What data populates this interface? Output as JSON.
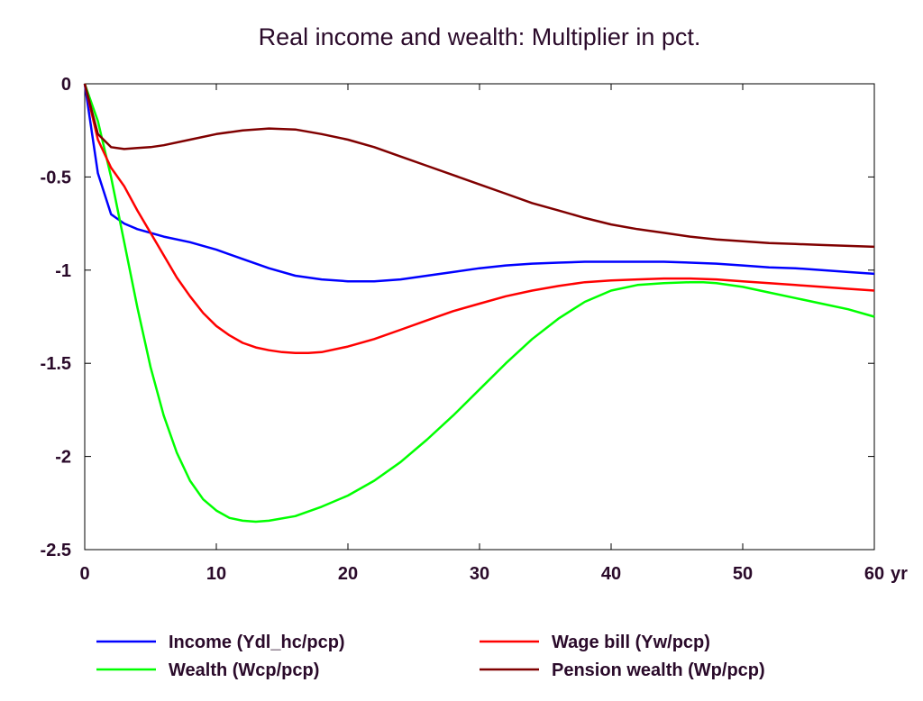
{
  "chart_data": {
    "type": "line",
    "title": "Real income and wealth: Multiplier in pct.",
    "x_unit_label": "yr",
    "xlim": [
      0,
      60
    ],
    "ylim": [
      -2.5,
      0
    ],
    "x_ticks": [
      0,
      10,
      20,
      30,
      40,
      50,
      60
    ],
    "y_ticks": [
      0,
      -0.5,
      -1,
      -1.5,
      -2,
      -2.5
    ],
    "x_tick_labels": [
      "0",
      "10",
      "20",
      "30",
      "40",
      "50",
      "60"
    ],
    "y_tick_labels": [
      "0",
      "-0.5",
      "-1",
      "-1.5",
      "-2",
      "-2.5"
    ],
    "grid": false,
    "legend_position": "bottom",
    "series": [
      {
        "name": "Income (Ydl_hc/pcp)",
        "color": "#0000ff",
        "x": [
          0,
          1,
          2,
          3,
          4,
          5,
          6,
          8,
          10,
          12,
          14,
          16,
          18,
          20,
          22,
          24,
          26,
          28,
          30,
          32,
          34,
          36,
          38,
          40,
          42,
          44,
          46,
          48,
          50,
          52,
          54,
          56,
          58,
          60
        ],
        "y": [
          0,
          -0.48,
          -0.7,
          -0.75,
          -0.78,
          -0.8,
          -0.82,
          -0.85,
          -0.89,
          -0.94,
          -0.99,
          -1.03,
          -1.05,
          -1.06,
          -1.06,
          -1.05,
          -1.03,
          -1.01,
          -0.99,
          -0.975,
          -0.965,
          -0.96,
          -0.955,
          -0.955,
          -0.955,
          -0.955,
          -0.96,
          -0.965,
          -0.975,
          -0.985,
          -0.99,
          -1.0,
          -1.01,
          -1.02
        ]
      },
      {
        "name": "Wealth (Wcp/pcp)",
        "color": "#00ff00",
        "x": [
          0,
          1,
          2,
          3,
          4,
          5,
          6,
          7,
          8,
          9,
          10,
          11,
          12,
          13,
          14,
          16,
          18,
          20,
          22,
          24,
          26,
          28,
          30,
          32,
          34,
          36,
          38,
          40,
          42,
          44,
          46,
          47,
          48,
          50,
          52,
          54,
          56,
          58,
          60
        ],
        "y": [
          0,
          -0.2,
          -0.5,
          -0.85,
          -1.2,
          -1.52,
          -1.78,
          -1.98,
          -2.13,
          -2.23,
          -2.29,
          -2.33,
          -2.345,
          -2.35,
          -2.345,
          -2.32,
          -2.27,
          -2.21,
          -2.13,
          -2.03,
          -1.91,
          -1.78,
          -1.64,
          -1.5,
          -1.37,
          -1.26,
          -1.17,
          -1.11,
          -1.08,
          -1.07,
          -1.065,
          -1.065,
          -1.07,
          -1.09,
          -1.12,
          -1.15,
          -1.18,
          -1.21,
          -1.25
        ]
      },
      {
        "name": "Wage bill (Yw/pcp)",
        "color": "#ff0000",
        "x": [
          0,
          1,
          2,
          3,
          4,
          5,
          6,
          7,
          8,
          9,
          10,
          11,
          12,
          13,
          14,
          15,
          16,
          17,
          18,
          20,
          22,
          24,
          26,
          28,
          30,
          32,
          34,
          36,
          38,
          40,
          42,
          44,
          46,
          48,
          50,
          52,
          54,
          56,
          58,
          60
        ],
        "y": [
          0,
          -0.3,
          -0.45,
          -0.55,
          -0.68,
          -0.8,
          -0.92,
          -1.04,
          -1.14,
          -1.23,
          -1.3,
          -1.35,
          -1.39,
          -1.415,
          -1.43,
          -1.44,
          -1.445,
          -1.445,
          -1.44,
          -1.41,
          -1.37,
          -1.32,
          -1.27,
          -1.22,
          -1.18,
          -1.14,
          -1.11,
          -1.085,
          -1.065,
          -1.055,
          -1.05,
          -1.045,
          -1.045,
          -1.05,
          -1.06,
          -1.07,
          -1.08,
          -1.09,
          -1.1,
          -1.11
        ]
      },
      {
        "name": "Pension wealth (Wp/pcp)",
        "color": "#800000",
        "x": [
          0,
          1,
          2,
          3,
          4,
          5,
          6,
          8,
          10,
          12,
          14,
          16,
          18,
          20,
          22,
          24,
          26,
          28,
          30,
          32,
          34,
          36,
          38,
          40,
          42,
          44,
          46,
          48,
          50,
          52,
          54,
          56,
          58,
          60
        ],
        "y": [
          0,
          -0.27,
          -0.34,
          -0.35,
          -0.345,
          -0.34,
          -0.33,
          -0.3,
          -0.27,
          -0.25,
          -0.24,
          -0.245,
          -0.27,
          -0.3,
          -0.34,
          -0.39,
          -0.44,
          -0.49,
          -0.54,
          -0.59,
          -0.64,
          -0.68,
          -0.72,
          -0.755,
          -0.78,
          -0.8,
          -0.82,
          -0.835,
          -0.845,
          -0.855,
          -0.86,
          -0.865,
          -0.87,
          -0.875
        ]
      }
    ]
  }
}
